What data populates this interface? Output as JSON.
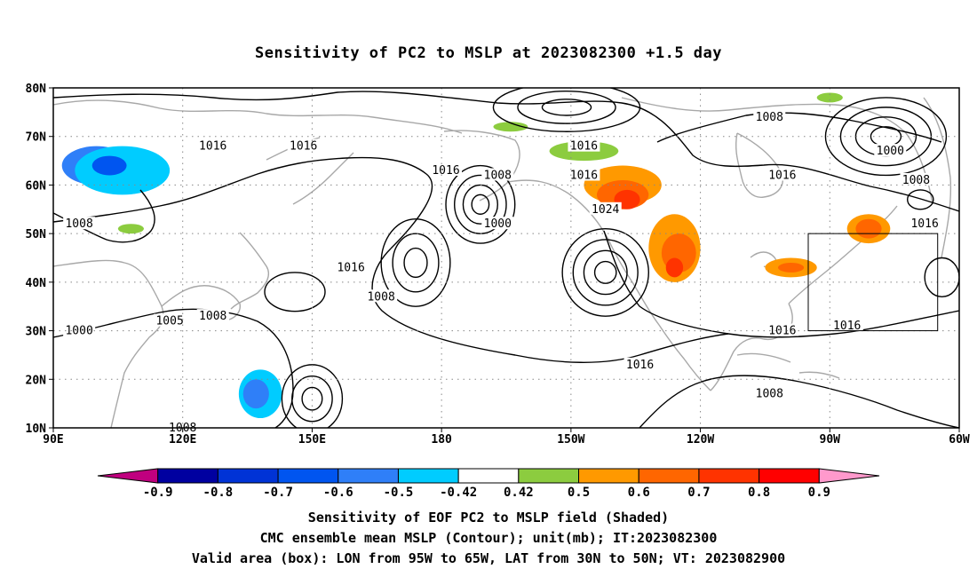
{
  "title": "Sensitivity of PC2 to MSLP at 2023082300 +1.5 day",
  "map": {
    "lon_range": [
      90,
      300
    ],
    "lat_range": [
      10,
      80
    ],
    "lat_ticks": [
      {
        "value": 80,
        "label": "80N"
      },
      {
        "value": 70,
        "label": "70N"
      },
      {
        "value": 60,
        "label": "60N"
      },
      {
        "value": 50,
        "label": "50N"
      },
      {
        "value": 40,
        "label": "40N"
      },
      {
        "value": 30,
        "label": "30N"
      },
      {
        "value": 20,
        "label": "20N"
      },
      {
        "value": 10,
        "label": "10N"
      }
    ],
    "lon_ticks": [
      {
        "value": 90,
        "label": "90E"
      },
      {
        "value": 120,
        "label": "120E"
      },
      {
        "value": 150,
        "label": "150E"
      },
      {
        "value": 180,
        "label": "180"
      },
      {
        "value": 210,
        "label": "150W"
      },
      {
        "value": 240,
        "label": "120W"
      },
      {
        "value": 270,
        "label": "90W"
      },
      {
        "value": 300,
        "label": "60W"
      }
    ],
    "grid": true,
    "valid_box": {
      "lon_min": 265,
      "lon_max": 295,
      "lat_min": 30,
      "lat_max": 50
    },
    "contour_labels": [
      {
        "text": "1016",
        "lon": 127,
        "lat": 68
      },
      {
        "text": "1016",
        "lon": 148,
        "lat": 68
      },
      {
        "text": "1008",
        "lon": 96,
        "lat": 52
      },
      {
        "text": "1016",
        "lon": 159,
        "lat": 43
      },
      {
        "text": "1008",
        "lon": 166,
        "lat": 37
      },
      {
        "text": "1005",
        "lon": 117,
        "lat": 32
      },
      {
        "text": "1008",
        "lon": 127,
        "lat": 33
      },
      {
        "text": "1000",
        "lon": 96,
        "lat": 30
      },
      {
        "text": "1008",
        "lon": 120,
        "lat": 10
      },
      {
        "text": "1016",
        "lon": 181,
        "lat": 63
      },
      {
        "text": "1008",
        "lon": 193,
        "lat": 62
      },
      {
        "text": "1000",
        "lon": 193,
        "lat": 52
      },
      {
        "text": "1016",
        "lon": 213,
        "lat": 68
      },
      {
        "text": "1016",
        "lon": 213,
        "lat": 62
      },
      {
        "text": "1024",
        "lon": 218,
        "lat": 55
      },
      {
        "text": "1016",
        "lon": 226,
        "lat": 23
      },
      {
        "text": "1008",
        "lon": 256,
        "lat": 74
      },
      {
        "text": "1000",
        "lon": 284,
        "lat": 67
      },
      {
        "text": "1008",
        "lon": 290,
        "lat": 61
      },
      {
        "text": "1016",
        "lon": 259,
        "lat": 62
      },
      {
        "text": "1016",
        "lon": 292,
        "lat": 52
      },
      {
        "text": "1016",
        "lon": 259,
        "lat": 30
      },
      {
        "text": "1016",
        "lon": 274,
        "lat": 31
      },
      {
        "text": "1008",
        "lon": 256,
        "lat": 17
      }
    ],
    "isobar_centers": [
      {
        "lon": 189,
        "lat": 56,
        "rx": 8,
        "ry": 8,
        "rings": 4
      },
      {
        "lon": 218,
        "lat": 42,
        "rx": 10,
        "ry": 9,
        "rings": 4
      },
      {
        "lon": 174,
        "lat": 44,
        "rx": 8,
        "ry": 9,
        "rings": 3
      },
      {
        "lon": 283,
        "lat": 70,
        "rx": 14,
        "ry": 8,
        "rings": 4
      },
      {
        "lon": 209,
        "lat": 76,
        "rx": 17,
        "ry": 5,
        "rings": 3
      },
      {
        "lon": 150,
        "lat": 16,
        "rx": 7,
        "ry": 7,
        "rings": 3
      },
      {
        "lon": 146,
        "lat": 38,
        "rx": 7,
        "ry": 4,
        "rings": 1
      },
      {
        "lon": 291,
        "lat": 57,
        "rx": 3,
        "ry": 2,
        "rings": 1
      },
      {
        "lon": 296,
        "lat": 41,
        "rx": 4,
        "ry": 4,
        "rings": 1
      }
    ],
    "shaded_regions": [
      {
        "value": -0.6,
        "lon": 100,
        "lat": 64,
        "rx": 8,
        "ry": 4
      },
      {
        "value": -0.5,
        "lon": 106,
        "lat": 63,
        "rx": 11,
        "ry": 5
      },
      {
        "value": -0.7,
        "lon": 103,
        "lat": 64,
        "rx": 4,
        "ry": 2
      },
      {
        "value": -0.5,
        "lon": 138,
        "lat": 17,
        "rx": 5,
        "ry": 5
      },
      {
        "value": -0.6,
        "lon": 137,
        "lat": 17,
        "rx": 3,
        "ry": 3
      },
      {
        "value": 0.42,
        "lon": 213,
        "lat": 67,
        "rx": 8,
        "ry": 2
      },
      {
        "value": 0.5,
        "lon": 222,
        "lat": 60,
        "rx": 9,
        "ry": 4
      },
      {
        "value": 0.6,
        "lon": 222,
        "lat": 58,
        "rx": 6,
        "ry": 3
      },
      {
        "value": 0.7,
        "lon": 223,
        "lat": 57,
        "rx": 3,
        "ry": 2
      },
      {
        "value": 0.5,
        "lon": 234,
        "lat": 47,
        "rx": 6,
        "ry": 7
      },
      {
        "value": 0.6,
        "lon": 235,
        "lat": 46,
        "rx": 4,
        "ry": 4
      },
      {
        "value": 0.7,
        "lon": 234,
        "lat": 43,
        "rx": 2,
        "ry": 2
      },
      {
        "value": 0.5,
        "lon": 261,
        "lat": 43,
        "rx": 6,
        "ry": 2
      },
      {
        "value": 0.6,
        "lon": 261,
        "lat": 43,
        "rx": 3,
        "ry": 1
      },
      {
        "value": 0.5,
        "lon": 279,
        "lat": 51,
        "rx": 5,
        "ry": 3
      },
      {
        "value": 0.6,
        "lon": 279,
        "lat": 51,
        "rx": 3,
        "ry": 2
      },
      {
        "value": 0.42,
        "lon": 108,
        "lat": 51,
        "rx": 3,
        "ry": 1
      },
      {
        "value": 0.42,
        "lon": 196,
        "lat": 72,
        "rx": 4,
        "ry": 1
      },
      {
        "value": 0.42,
        "lon": 270,
        "lat": 78,
        "rx": 3,
        "ry": 1
      },
      {
        "value": -0.42,
        "lon": 196,
        "lat": 51,
        "rx": 2,
        "ry": 1
      }
    ]
  },
  "colorbar": {
    "colors": [
      "#c0007f",
      "#0000a0",
      "#0033d6",
      "#0055f0",
      "#2f7ff8",
      "#00ccff",
      "#ffffff",
      "#8ccc3f",
      "#ff9900",
      "#ff6600",
      "#ff3300",
      "#ff0000",
      "#ff99cc"
    ],
    "labels": [
      "-0.9",
      "-0.8",
      "-0.7",
      "-0.6",
      "-0.5",
      "-0.42",
      "0.42",
      "0.5",
      "0.6",
      "0.7",
      "0.8",
      "0.9"
    ]
  },
  "captions": {
    "line1": "Sensitivity of EOF PC2 to MSLP field (Shaded)",
    "line2": "CMC ensemble mean MSLP (Contour); unit(mb); IT:2023082300",
    "line3": "Valid area (box): LON from 95W to 65W, LAT from 30N to 50N; VT: 2023082900"
  }
}
